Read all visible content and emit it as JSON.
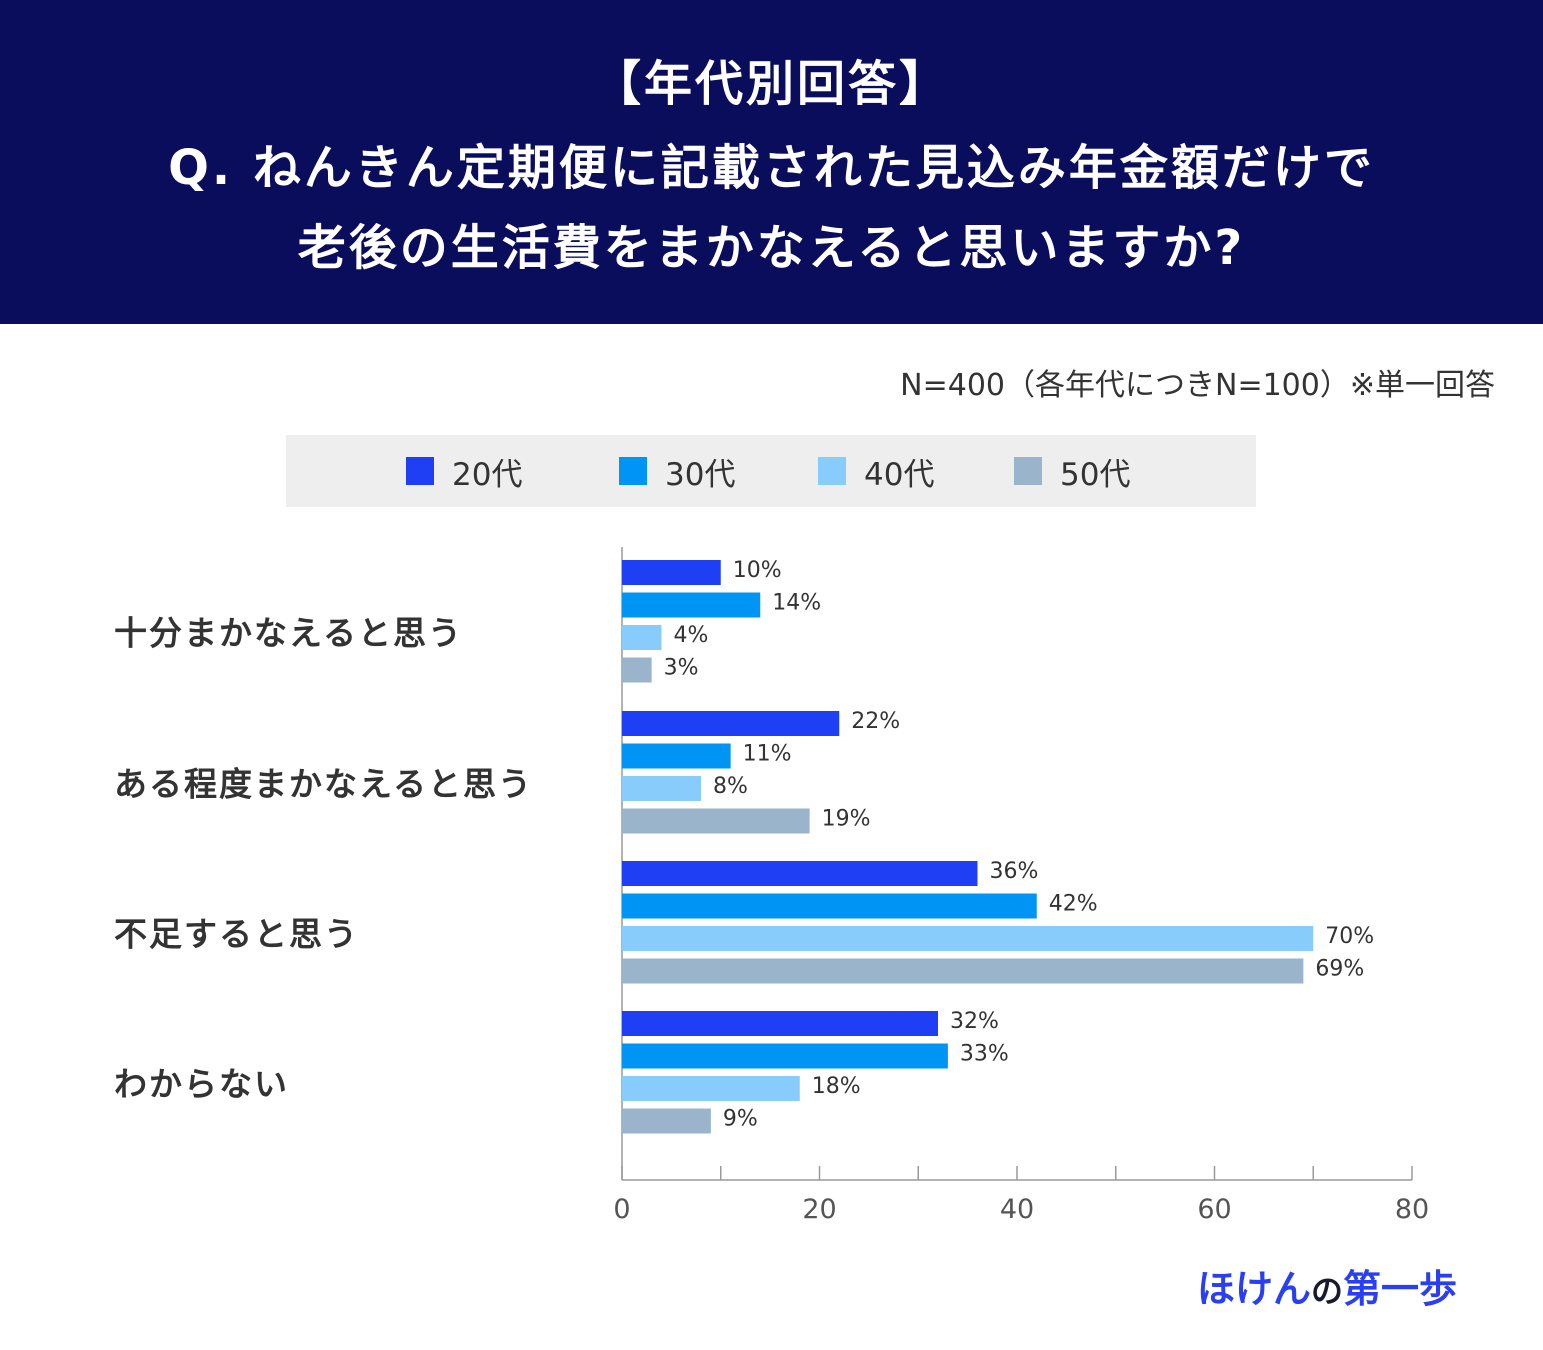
{
  "header": {
    "tag": "【年代別回答】",
    "question_line1": "Q. ねんきん定期便に記載された見込み年金額だけで",
    "question_line2": "老後の生活費をまかなえると思いますか?"
  },
  "note": "N=400（各年代につきN=100）※単一回答",
  "brand": {
    "part1": "ほけん",
    "part2": "の",
    "part3": "第一歩"
  },
  "chart_data": {
    "type": "bar",
    "orientation": "horizontal",
    "categories": [
      "十分まかなえると思う",
      "ある程度まかなえると思う",
      "不足すると思う",
      "わからない"
    ],
    "series": [
      {
        "name": "20代",
        "color": "#1f3ff5",
        "values": [
          10,
          22,
          36,
          32
        ]
      },
      {
        "name": "30代",
        "color": "#0094f5",
        "values": [
          14,
          11,
          42,
          33
        ]
      },
      {
        "name": "40代",
        "color": "#88ccfb",
        "values": [
          4,
          8,
          70,
          18
        ]
      },
      {
        "name": "50代",
        "color": "#9ab5cb",
        "values": [
          3,
          19,
          69,
          9
        ]
      }
    ],
    "value_suffix": "%",
    "xlim": [
      0,
      80
    ],
    "xticks": [
      0,
      20,
      40,
      60,
      80
    ],
    "legend_position": "top",
    "grid": false
  }
}
